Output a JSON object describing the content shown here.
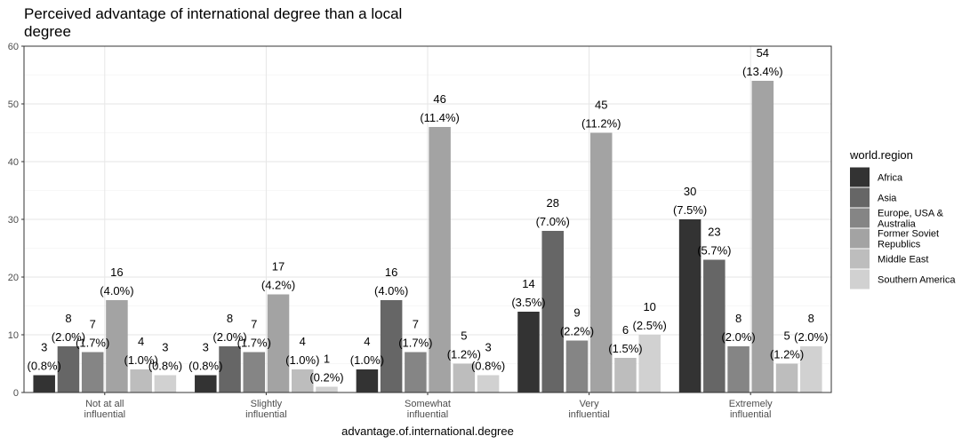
{
  "chart_data": {
    "type": "bar",
    "title": "Perceived advantage of international degree than a local degree",
    "xlabel": "advantage.of.international.degree",
    "ylabel": "",
    "ylim": [
      0,
      60
    ],
    "yticks": [
      0,
      10,
      20,
      30,
      40,
      50,
      60
    ],
    "grid": true,
    "legend_placement": "right",
    "legend_title": "world.region",
    "categories": [
      [
        "Not at all",
        "influential"
      ],
      [
        "Slightly",
        "influential"
      ],
      [
        "Somewhat",
        "influential"
      ],
      [
        "Very",
        "influential"
      ],
      [
        "Extremely",
        "influential"
      ]
    ],
    "series": [
      {
        "name": [
          "Africa"
        ],
        "color": "#333333",
        "values": [
          3,
          3,
          4,
          14,
          30
        ],
        "labels": [
          "(0.8%)",
          "(0.8%)",
          "(1.0%)",
          "(3.5%)",
          "(7.5%)"
        ]
      },
      {
        "name": [
          "Asia"
        ],
        "color": "#666666",
        "values": [
          8,
          8,
          16,
          28,
          23
        ],
        "labels": [
          "(2.0%)",
          "(2.0%)",
          "(4.0%)",
          "(7.0%)",
          "(5.7%)"
        ]
      },
      {
        "name": [
          "Europe, USA &",
          "Australia"
        ],
        "color": "#858585",
        "values": [
          7,
          7,
          7,
          9,
          8
        ],
        "labels": [
          "(1.7%)",
          "(1.7%)",
          "(1.7%)",
          "(2.2%)",
          "(2.0%)"
        ]
      },
      {
        "name": [
          "Former Soviet",
          "Republics"
        ],
        "color": "#a3a3a3",
        "values": [
          16,
          17,
          46,
          45,
          54
        ],
        "labels": [
          "(4.0%)",
          "(4.2%)",
          "(11.4%)",
          "(11.2%)",
          "(13.4%)"
        ]
      },
      {
        "name": [
          "Middle East"
        ],
        "color": "#bdbdbd",
        "values": [
          4,
          4,
          5,
          6,
          5
        ],
        "labels": [
          "(1.0%)",
          "(1.0%)",
          "(1.2%)",
          "(1.5%)",
          "(1.2%)"
        ]
      },
      {
        "name": [
          "Southern America"
        ],
        "color": "#d1d1d1",
        "values": [
          3,
          1,
          3,
          10,
          8
        ],
        "labels": [
          "(0.8%)",
          "(0.2%)",
          "(0.8%)",
          "(2.5%)",
          "(2.0%)"
        ]
      }
    ]
  }
}
